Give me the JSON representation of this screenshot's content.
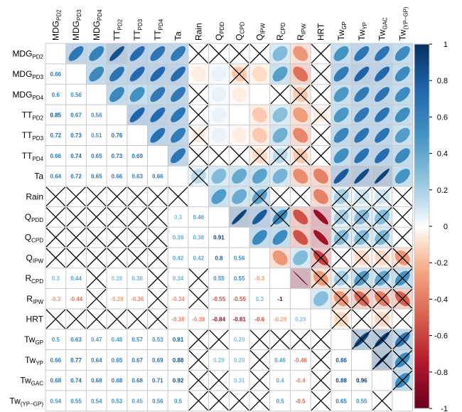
{
  "chart_data": {
    "type": "heatmap",
    "style": "correlation matrix: upper triangle ellipses, lower triangle coefficients, crosses for non-significant cells",
    "variables": [
      {
        "base": "MDG",
        "sub": "PD2"
      },
      {
        "base": "MDG",
        "sub": "PD3"
      },
      {
        "base": "MDG",
        "sub": "PD4"
      },
      {
        "base": "TT",
        "sub": "PD2"
      },
      {
        "base": "TT",
        "sub": "PD3"
      },
      {
        "base": "TT",
        "sub": "PD4"
      },
      {
        "base": "Ta",
        "sub": ""
      },
      {
        "base": "Rain",
        "sub": ""
      },
      {
        "base": "Q",
        "sub": "PDD"
      },
      {
        "base": "Q",
        "sub": "CPD"
      },
      {
        "base": "Q",
        "sub": "IPW"
      },
      {
        "base": "R",
        "sub": "CPD"
      },
      {
        "base": "R",
        "sub": "IPW"
      },
      {
        "base": "HRT",
        "sub": ""
      },
      {
        "base": "Tw",
        "sub": "GP"
      },
      {
        "base": "Tw",
        "sub": "YP"
      },
      {
        "base": "Tw",
        "sub": "GAC"
      },
      {
        "base": "Tw",
        "sub": "(YP−GP)"
      }
    ],
    "matrix": [
      [
        1,
        0.66,
        0.6,
        0.85,
        0.72,
        0.66,
        0.64,
        0.0,
        0.0,
        0.0,
        0.0,
        0.3,
        -0.3,
        0.0,
        0.5,
        0.66,
        0.68,
        0.54
      ],
      [
        0.66,
        1,
        0.56,
        0.67,
        0.73,
        0.74,
        0.72,
        -0.05,
        0.05,
        -0.15,
        -0.1,
        0.44,
        -0.44,
        0.0,
        0.63,
        0.77,
        0.74,
        0.55
      ],
      [
        0.6,
        0.56,
        1,
        0.56,
        0.51,
        0.65,
        0.65,
        0.0,
        0.05,
        -0.05,
        0.0,
        0.0,
        -0.15,
        0.0,
        0.47,
        0.64,
        0.68,
        0.54
      ],
      [
        0.85,
        0.67,
        0.56,
        1,
        0.76,
        0.73,
        0.66,
        0.0,
        0.05,
        0.0,
        -0.15,
        0.28,
        -0.28,
        -0.05,
        0.48,
        0.65,
        0.68,
        0.53
      ],
      [
        0.72,
        0.73,
        0.51,
        0.76,
        1,
        0.69,
        0.63,
        -0.05,
        0.05,
        -0.05,
        -0.15,
        0.36,
        -0.36,
        0.0,
        0.57,
        0.67,
        0.68,
        0.45
      ],
      [
        0.66,
        0.74,
        0.65,
        0.73,
        0.69,
        1,
        0.66,
        0.0,
        0.0,
        0.0,
        -0.1,
        0.15,
        -0.15,
        0.0,
        0.53,
        0.69,
        0.71,
        0.56
      ],
      [
        0.64,
        0.72,
        0.65,
        0.66,
        0.63,
        0.66,
        1,
        0.15,
        0.3,
        0.39,
        0.42,
        0.34,
        -0.34,
        -0.38,
        0.81,
        0.88,
        0.92,
        0.5
      ],
      [
        0.0,
        -0.05,
        0.0,
        0.0,
        -0.05,
        0.0,
        0.15,
        1,
        0.46,
        0.38,
        0.42,
        0.0,
        0.0,
        -0.38,
        0.2,
        0.1,
        0.1,
        0.0
      ],
      [
        0.0,
        0.05,
        0.05,
        0.05,
        0.05,
        0.0,
        0.3,
        0.46,
        1,
        0.91,
        0.8,
        0.55,
        -0.55,
        -0.84,
        0.2,
        0.29,
        0.29,
        0.0
      ],
      [
        0.0,
        -0.15,
        -0.05,
        0.0,
        -0.05,
        0.0,
        0.39,
        0.38,
        0.91,
        1,
        0.56,
        0.55,
        -0.55,
        -0.81,
        0.29,
        0.29,
        0.31,
        0.0
      ],
      [
        0.0,
        -0.1,
        0.0,
        -0.15,
        -0.15,
        -0.1,
        0.42,
        0.42,
        0.8,
        0.56,
        1,
        -0.3,
        0.3,
        -0.6,
        0.0,
        -0.1,
        -0.1,
        -0.3
      ],
      [
        0.3,
        0.44,
        0.0,
        0.28,
        0.36,
        0.15,
        0.34,
        0.0,
        0.55,
        0.55,
        -0.3,
        1,
        -1,
        -0.29,
        0.2,
        0.46,
        0.4,
        0.5
      ],
      [
        -0.3,
        -0.44,
        -0.15,
        -0.28,
        -0.36,
        -0.15,
        -0.34,
        0.0,
        -0.55,
        -0.55,
        0.3,
        -1,
        1,
        0.29,
        -0.3,
        -0.46,
        -0.4,
        -0.5
      ],
      [
        0.0,
        0.0,
        0.0,
        -0.05,
        0.0,
        0.0,
        -0.38,
        -0.38,
        -0.84,
        -0.81,
        -0.6,
        -0.29,
        0.29,
        1,
        -0.1,
        0.0,
        -0.1,
        0.0
      ],
      [
        0.5,
        0.63,
        0.47,
        0.48,
        0.57,
        0.53,
        0.81,
        0.2,
        0.2,
        0.29,
        0.0,
        0.2,
        -0.3,
        -0.1,
        1,
        0.86,
        0.88,
        0.65
      ],
      [
        0.66,
        0.77,
        0.64,
        0.65,
        0.67,
        0.69,
        0.88,
        0.1,
        0.29,
        0.29,
        -0.1,
        0.46,
        -0.46,
        0.0,
        0.86,
        1,
        0.96,
        0.55
      ],
      [
        0.68,
        0.74,
        0.68,
        0.68,
        0.68,
        0.71,
        0.92,
        0.1,
        0.29,
        0.31,
        -0.1,
        0.4,
        -0.4,
        -0.1,
        0.88,
        0.96,
        1,
        0.55
      ],
      [
        0.54,
        0.55,
        0.54,
        0.53,
        0.45,
        0.56,
        0.5,
        0.0,
        0.0,
        0.0,
        -0.3,
        0.5,
        -0.5,
        0.0,
        0.65,
        0.55,
        0.55,
        1
      ]
    ],
    "upper_crossed": [
      [
        0,
        7
      ],
      [
        0,
        8
      ],
      [
        0,
        9
      ],
      [
        0,
        10
      ],
      [
        0,
        13
      ],
      [
        1,
        9
      ],
      [
        1,
        13
      ],
      [
        2,
        7
      ],
      [
        2,
        11
      ],
      [
        2,
        12
      ],
      [
        2,
        13
      ],
      [
        3,
        7
      ],
      [
        3,
        13
      ],
      [
        4,
        7
      ],
      [
        4,
        13
      ],
      [
        5,
        7
      ],
      [
        5,
        8
      ],
      [
        5,
        9
      ],
      [
        5,
        10
      ],
      [
        5,
        11
      ],
      [
        5,
        12
      ],
      [
        5,
        13
      ],
      [
        6,
        7
      ],
      [
        7,
        10
      ],
      [
        7,
        11
      ],
      [
        7,
        12
      ],
      [
        7,
        14
      ],
      [
        7,
        15
      ],
      [
        7,
        16
      ],
      [
        7,
        17
      ],
      [
        8,
        11
      ],
      [
        8,
        14
      ],
      [
        8,
        15
      ],
      [
        8,
        16
      ],
      [
        8,
        17
      ],
      [
        9,
        14
      ],
      [
        9,
        15
      ],
      [
        9,
        16
      ],
      [
        9,
        17
      ],
      [
        10,
        13
      ],
      [
        10,
        14
      ],
      [
        10,
        15
      ],
      [
        10,
        16
      ],
      [
        10,
        17
      ],
      [
        11,
        13
      ],
      [
        11,
        14
      ],
      [
        11,
        15
      ],
      [
        11,
        16
      ],
      [
        11,
        17
      ],
      [
        12,
        14
      ],
      [
        12,
        15
      ],
      [
        12,
        16
      ],
      [
        12,
        17
      ],
      [
        13,
        14
      ],
      [
        13,
        15
      ],
      [
        13,
        16
      ],
      [
        13,
        17
      ],
      [
        14,
        15
      ],
      [
        14,
        16
      ],
      [
        14,
        17
      ],
      [
        15,
        16
      ],
      [
        15,
        17
      ],
      [
        16,
        17
      ]
    ],
    "lower_labels": [
      [
        "1,0",
        "0.66"
      ],
      [
        "2,0",
        "0.6"
      ],
      [
        "2,1",
        "0.56"
      ],
      [
        "3,0",
        "0.85"
      ],
      [
        "3,1",
        "0.67"
      ],
      [
        "3,2",
        "0.56"
      ],
      [
        "4,0",
        "0.72"
      ],
      [
        "4,1",
        "0.73"
      ],
      [
        "4,2",
        "0.51"
      ],
      [
        "4,3",
        "0.76"
      ],
      [
        "5,0",
        "0.66"
      ],
      [
        "5,1",
        "0.74"
      ],
      [
        "5,2",
        "0.65"
      ],
      [
        "5,3",
        "0.73"
      ],
      [
        "5,4",
        "0.69"
      ],
      [
        "6,0",
        "0.64"
      ],
      [
        "6,1",
        "0.72"
      ],
      [
        "6,2",
        "0.65"
      ],
      [
        "6,3",
        "0.66"
      ],
      [
        "6,4",
        "0.63"
      ],
      [
        "6,5",
        "0.66"
      ],
      [
        "8,6",
        "0.3"
      ],
      [
        "8,7",
        "0.46"
      ],
      [
        "9,6",
        "0.39"
      ],
      [
        "9,7",
        "0.38"
      ],
      [
        "9,8",
        "0.91"
      ],
      [
        "10,6",
        "0.42"
      ],
      [
        "10,7",
        "0.42"
      ],
      [
        "10,8",
        "0.8"
      ],
      [
        "10,9",
        "0.56"
      ],
      [
        "11,0",
        "0.3"
      ],
      [
        "11,1",
        "0.44"
      ],
      [
        "11,3",
        "0.28"
      ],
      [
        "11,4",
        "0.36"
      ],
      [
        "11,6",
        "0.34"
      ],
      [
        "11,8",
        "0.55"
      ],
      [
        "11,9",
        "0.55"
      ],
      [
        "11,10",
        "-0.3"
      ],
      [
        "12,0",
        "-0.3"
      ],
      [
        "12,1",
        "-0.44"
      ],
      [
        "12,3",
        "-0.28"
      ],
      [
        "12,4",
        "-0.36"
      ],
      [
        "12,6",
        "-0.34"
      ],
      [
        "12,8",
        "-0.55"
      ],
      [
        "12,9",
        "-0.55"
      ],
      [
        "12,10",
        "0.3"
      ],
      [
        "12,11",
        "-1"
      ],
      [
        "13,6",
        "-0.38"
      ],
      [
        "13,7",
        "-0.38"
      ],
      [
        "13,8",
        "-0.84"
      ],
      [
        "13,9",
        "-0.81"
      ],
      [
        "13,10",
        "-0.6"
      ],
      [
        "13,11",
        "-0.29"
      ],
      [
        "13,12",
        "0.29"
      ],
      [
        "14,0",
        "0.5"
      ],
      [
        "14,1",
        "0.63"
      ],
      [
        "14,2",
        "0.47"
      ],
      [
        "14,3",
        "0.48"
      ],
      [
        "14,4",
        "0.57"
      ],
      [
        "14,5",
        "0.53"
      ],
      [
        "14,6",
        "0.81"
      ],
      [
        "14,9",
        "0.29"
      ],
      [
        "15,0",
        "0.66"
      ],
      [
        "15,1",
        "0.77"
      ],
      [
        "15,2",
        "0.64"
      ],
      [
        "15,3",
        "0.65"
      ],
      [
        "15,4",
        "0.67"
      ],
      [
        "15,5",
        "0.69"
      ],
      [
        "15,6",
        "0.88"
      ],
      [
        "15,8",
        "0.29"
      ],
      [
        "15,9",
        "0.29"
      ],
      [
        "15,11",
        "0.46"
      ],
      [
        "15,12",
        "-0.46"
      ],
      [
        "15,14",
        "0.86"
      ],
      [
        "16,0",
        "0.68"
      ],
      [
        "16,1",
        "0.74"
      ],
      [
        "16,2",
        "0.68"
      ],
      [
        "16,3",
        "0.68"
      ],
      [
        "16,4",
        "0.68"
      ],
      [
        "16,5",
        "0.71"
      ],
      [
        "16,6",
        "0.92"
      ],
      [
        "16,9",
        "0.31"
      ],
      [
        "16,11",
        "0.4"
      ],
      [
        "16,12",
        "-0.4"
      ],
      [
        "16,14",
        "0.88"
      ],
      [
        "16,15",
        "0.96"
      ],
      [
        "17,0",
        "0.54"
      ],
      [
        "17,1",
        "0.55"
      ],
      [
        "17,2",
        "0.54"
      ],
      [
        "17,3",
        "0.53"
      ],
      [
        "17,4",
        "0.45"
      ],
      [
        "17,5",
        "0.56"
      ],
      [
        "17,6",
        "0.5"
      ],
      [
        "17,11",
        "0.5"
      ],
      [
        "17,12",
        "-0.5"
      ],
      [
        "17,14",
        "0.65"
      ],
      [
        "17,15",
        "0.55"
      ]
    ],
    "colorbar": {
      "min": -1,
      "max": 1,
      "ticks": [
        "1",
        "0.8",
        "0.6",
        "0.4",
        "0.2",
        "0",
        "-0.2",
        "-0.4",
        "-0.6",
        "-0.8",
        "-1"
      ]
    },
    "colormap": {
      "stops": [
        [
          -1.0,
          "#67001f"
        ],
        [
          -0.75,
          "#b2182b"
        ],
        [
          -0.5,
          "#d6604d"
        ],
        [
          -0.25,
          "#f4a582"
        ],
        [
          -0.1,
          "#fddbc7"
        ],
        [
          0.0,
          "#ffffff"
        ],
        [
          0.1,
          "#d1e5f0"
        ],
        [
          0.25,
          "#92c5de"
        ],
        [
          0.5,
          "#4393c3"
        ],
        [
          0.75,
          "#2166ac"
        ],
        [
          1.0,
          "#053061"
        ]
      ]
    }
  }
}
